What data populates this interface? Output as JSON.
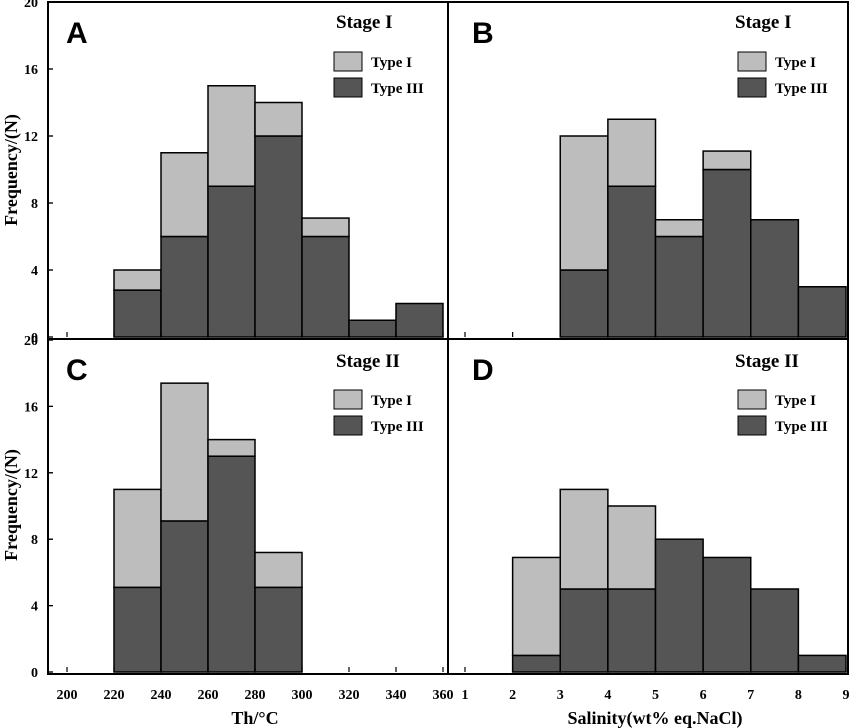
{
  "colors": {
    "type_i": "#bdbdbd",
    "type_iii": "#555555",
    "axis": "#000000"
  },
  "axis_labels": {
    "y": "Frequency/(N)",
    "x_left": "Th/°C",
    "x_right": "Salinity(wt% eq.NaCl)"
  },
  "x_ticks_th": [
    "200",
    "220",
    "240",
    "260",
    "280",
    "300",
    "320",
    "340",
    "360"
  ],
  "x_ticks_sal": [
    "1",
    "2",
    "3",
    "4",
    "5",
    "6",
    "7",
    "8",
    "9"
  ],
  "y_ticks": [
    "0",
    "4",
    "8",
    "12",
    "16",
    "20"
  ],
  "chart_data": [
    {
      "panel": "A",
      "type": "bar",
      "stacked": true,
      "title": "Stage I",
      "xlabel": "Th/°C",
      "ylabel": "Frequency/(N)",
      "xlim": [
        200,
        360
      ],
      "ylim": [
        0,
        20
      ],
      "bin_width": 20,
      "bins_start": [
        220,
        240,
        260,
        280,
        300,
        320,
        340
      ],
      "series": [
        {
          "name": "Type III",
          "values": [
            2.8,
            6,
            9,
            12,
            6,
            1,
            2
          ]
        },
        {
          "name": "Type I",
          "values": [
            1.2,
            5,
            6,
            2,
            1.1,
            0,
            0
          ]
        }
      ]
    },
    {
      "panel": "B",
      "type": "bar",
      "stacked": true,
      "title": "Stage I",
      "xlabel": "Salinity(wt% eq.NaCl)",
      "ylabel": "Frequency/(N)",
      "xlim": [
        1,
        9
      ],
      "ylim": [
        0,
        20
      ],
      "bin_width": 1,
      "bins_start": [
        3,
        4,
        5,
        6,
        7,
        8
      ],
      "series": [
        {
          "name": "Type III",
          "values": [
            4,
            9,
            6,
            10,
            7,
            3
          ]
        },
        {
          "name": "Type I",
          "values": [
            8,
            4,
            1,
            1.1,
            0,
            0
          ]
        }
      ]
    },
    {
      "panel": "C",
      "type": "bar",
      "stacked": true,
      "title": "Stage II",
      "xlabel": "Th/°C",
      "ylabel": "Frequency/(N)",
      "xlim": [
        200,
        360
      ],
      "ylim": [
        0,
        20
      ],
      "bin_width": 20,
      "bins_start": [
        220,
        240,
        260,
        280
      ],
      "series": [
        {
          "name": "Type III",
          "values": [
            5.1,
            9.1,
            13,
            5.1
          ]
        },
        {
          "name": "Type I",
          "values": [
            5.9,
            8.3,
            1,
            2.1
          ]
        }
      ]
    },
    {
      "panel": "D",
      "type": "bar",
      "stacked": true,
      "title": "Stage II",
      "xlabel": "Salinity(wt% eq.NaCl)",
      "ylabel": "Frequency/(N)",
      "xlim": [
        1,
        9
      ],
      "ylim": [
        0,
        20
      ],
      "bin_width": 1,
      "bins_start": [
        2,
        3,
        4,
        5,
        6,
        7,
        8
      ],
      "series": [
        {
          "name": "Type III",
          "values": [
            1,
            5,
            5,
            8,
            6.9,
            5,
            1
          ]
        },
        {
          "name": "Type I",
          "values": [
            5.9,
            6,
            5,
            0,
            0,
            0,
            0
          ]
        }
      ]
    }
  ]
}
